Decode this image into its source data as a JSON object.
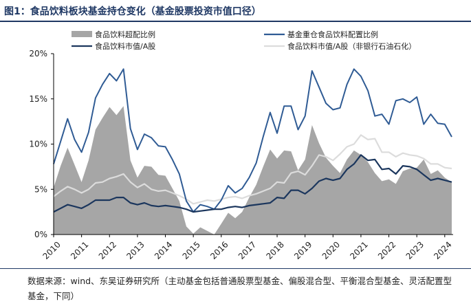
{
  "title": "图1：食品饮料板块基金持仓变化（基金股票投资市值口径）",
  "source": "数据来源：wind、东吴证券研究所（主动基金包括普通股票型基金、偏股混合型、平衡混合型基金、灵活配置型基金，下同）",
  "colors": {
    "area": "#a6a6a6",
    "fund": "#2f5b94",
    "share": "#1b365d",
    "ex": "#dcdcdc"
  },
  "chart_data": {
    "type": "line",
    "xlim": [
      2010,
      2024.3
    ],
    "ylim": [
      0,
      20
    ],
    "x_ticks": [
      "2010",
      "2011",
      "2012",
      "2013",
      "2014",
      "2015",
      "2016",
      "2017",
      "2018",
      "2019",
      "2020",
      "2021",
      "2022",
      "2023",
      "2024"
    ],
    "y_ticks": [
      "0%",
      "5%",
      "10%",
      "15%",
      "20%"
    ],
    "x": [
      2010.0,
      2010.25,
      2010.5,
      2010.75,
      2011.0,
      2011.25,
      2011.5,
      2011.75,
      2012.0,
      2012.25,
      2012.5,
      2012.75,
      2013.0,
      2013.25,
      2013.5,
      2013.75,
      2014.0,
      2014.25,
      2014.5,
      2014.75,
      2015.0,
      2015.25,
      2015.5,
      2015.75,
      2016.0,
      2016.25,
      2016.5,
      2016.75,
      2017.0,
      2017.25,
      2017.5,
      2017.75,
      2018.0,
      2018.25,
      2018.5,
      2018.75,
      2019.0,
      2019.25,
      2019.5,
      2019.75,
      2020.0,
      2020.25,
      2020.5,
      2020.75,
      2021.0,
      2021.25,
      2021.5,
      2021.75,
      2022.0,
      2022.25,
      2022.5,
      2022.75,
      2023.0,
      2023.25,
      2023.5,
      2023.75,
      2024.0,
      2024.25
    ],
    "series": [
      {
        "name": "食品饮料超配比例",
        "kind": "area",
        "values": [
          5.2,
          7.6,
          9.6,
          7.7,
          5.8,
          8.2,
          11.6,
          12.9,
          14.1,
          13.2,
          14.2,
          8.2,
          6.3,
          7.6,
          7.5,
          6.6,
          6.5,
          5.1,
          3.7,
          0.9,
          0.1,
          0.8,
          0.4,
          0.0,
          1.2,
          2.4,
          1.8,
          2.5,
          4.1,
          5.5,
          7.5,
          9.4,
          8.4,
          9.3,
          9.2,
          7.1,
          8.3,
          12.1,
          10.1,
          8.5,
          7.6,
          6.8,
          8.3,
          9.3,
          8.8,
          8.0,
          6.8,
          5.9,
          6.1,
          5.6,
          7.0,
          7.3,
          7.4,
          8.3,
          6.7,
          7.1,
          6.3,
          5.8
        ]
      },
      {
        "name": "基金重仓食品饮料配置比例",
        "kind": "line",
        "values": [
          7.8,
          10.3,
          12.8,
          10.5,
          9.1,
          11.3,
          15.1,
          16.6,
          17.8,
          17.0,
          18.3,
          11.7,
          9.4,
          11.1,
          10.7,
          9.8,
          9.7,
          8.3,
          6.7,
          3.7,
          2.5,
          3.3,
          3.1,
          2.8,
          3.8,
          5.4,
          4.6,
          5.1,
          6.3,
          7.9,
          10.8,
          13.5,
          11.2,
          14.2,
          14.2,
          11.6,
          13.1,
          18.1,
          16.3,
          14.5,
          13.8,
          14.0,
          16.6,
          18.3,
          17.5,
          15.9,
          13.1,
          13.3,
          12.2,
          14.8,
          15.0,
          14.6,
          15.2,
          12.2,
          13.3,
          12.3,
          12.2,
          10.8
        ]
      },
      {
        "name": "食品饮料市值/A股",
        "kind": "line",
        "values": [
          2.5,
          2.9,
          3.3,
          3.1,
          2.9,
          3.3,
          3.8,
          3.8,
          3.8,
          4.1,
          4.1,
          3.5,
          3.3,
          3.5,
          3.2,
          3.1,
          3.2,
          3.1,
          3.0,
          2.8,
          2.5,
          2.6,
          2.7,
          2.8,
          2.8,
          3.0,
          3.1,
          3.0,
          3.2,
          3.3,
          3.4,
          3.5,
          4.1,
          4.0,
          4.9,
          4.9,
          4.5,
          5.1,
          5.9,
          6.2,
          6.0,
          6.2,
          7.2,
          7.8,
          8.8,
          8.2,
          8.3,
          7.2,
          7.3,
          6.7,
          7.6,
          7.5,
          7.2,
          6.6,
          6.0,
          6.2,
          6.0,
          5.8
        ]
      },
      {
        "name": "食品饮料市值/A股（非银行石油石化）",
        "kind": "line",
        "values": [
          4.2,
          4.8,
          5.3,
          5.0,
          4.6,
          5.0,
          5.7,
          5.8,
          6.2,
          6.4,
          6.7,
          5.8,
          5.2,
          5.6,
          5.0,
          4.8,
          4.9,
          4.6,
          4.3,
          3.9,
          3.4,
          3.6,
          3.8,
          3.7,
          3.9,
          4.1,
          4.2,
          4.0,
          4.3,
          4.5,
          4.8,
          5.1,
          5.8,
          5.7,
          6.8,
          7.0,
          6.6,
          7.6,
          8.8,
          8.6,
          8.2,
          8.9,
          9.7,
          10.0,
          11.0,
          10.5,
          10.6,
          9.1,
          9.1,
          8.6,
          9.0,
          8.8,
          8.7,
          8.4,
          7.8,
          7.8,
          7.4,
          7.3
        ]
      }
    ],
    "legend": {
      "placement": "top"
    }
  }
}
